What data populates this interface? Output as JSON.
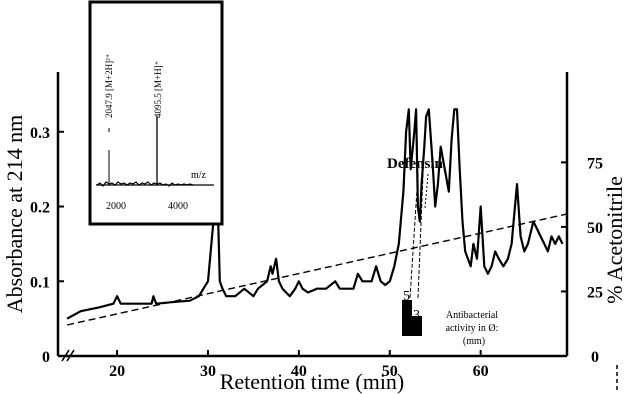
{
  "chart_data": {
    "type": "line",
    "title": "",
    "xlabel": "Retention time (min)",
    "ylabel": "Absorbance at 214 nm",
    "y2label": "% Acetonitrile",
    "xlim": [
      13.5,
      69.5
    ],
    "ylim": [
      0,
      0.38
    ],
    "y2lim": [
      0,
      110
    ],
    "xticks": [
      20,
      30,
      40,
      50,
      60
    ],
    "yticks": [
      0,
      0.1,
      0.2,
      0.3
    ],
    "ytick_labels": [
      "0",
      "0.1",
      "0.2",
      "0.3"
    ],
    "y2ticks": [
      25,
      50,
      75
    ],
    "y2tick_labels": [
      "25",
      "50",
      "75"
    ],
    "legend": "none",
    "grid": false,
    "series": [
      {
        "name": "",
        "style": "solid",
        "x": [
          14.5,
          16,
          18,
          19.6,
          20,
          20.4,
          22,
          23.8,
          24,
          24.3,
          26,
          28,
          29,
          29.5,
          30,
          30.3,
          30.6,
          30.9,
          31.1,
          31.3,
          31.6,
          32,
          33,
          34,
          35,
          35.5,
          36,
          36.5,
          36.9,
          37.1,
          37.3,
          37.5,
          37.8,
          38.2,
          38.6,
          39,
          39.6,
          40,
          40.4,
          41,
          42,
          43,
          44,
          44.5,
          45,
          46,
          46.5,
          47,
          48,
          48.5,
          49,
          49.5,
          50,
          50.5,
          51,
          51.5,
          51.8,
          52.1,
          52.3,
          52.7,
          52.9,
          53.1,
          53.3,
          53.5,
          53.8,
          54,
          54.3,
          54.7,
          55,
          55.3,
          55.6,
          55.9,
          56.2,
          56.5,
          56.8,
          57.1,
          57.4,
          57.7,
          58,
          58.3,
          58.6,
          58.9,
          59.2,
          59.6,
          60,
          60.4,
          60.8,
          61.2,
          61.6,
          62,
          62.5,
          63,
          63.4,
          63.7,
          64,
          64.4,
          64.8,
          65.2,
          65.8,
          66.2,
          66.6,
          67,
          67.4,
          67.8,
          68.2,
          68.6,
          69
        ],
        "y": [
          0.05,
          0.06,
          0.065,
          0.07,
          0.08,
          0.07,
          0.07,
          0.07,
          0.08,
          0.07,
          0.072,
          0.074,
          0.08,
          0.09,
          0.1,
          0.14,
          0.18,
          0.23,
          0.19,
          0.1,
          0.09,
          0.08,
          0.08,
          0.09,
          0.08,
          0.09,
          0.095,
          0.1,
          0.12,
          0.11,
          0.12,
          0.13,
          0.1,
          0.09,
          0.085,
          0.08,
          0.09,
          0.1,
          0.09,
          0.085,
          0.09,
          0.09,
          0.1,
          0.09,
          0.09,
          0.09,
          0.11,
          0.1,
          0.1,
          0.12,
          0.1,
          0.095,
          0.1,
          0.12,
          0.15,
          0.22,
          0.3,
          0.33,
          0.25,
          0.3,
          0.33,
          0.2,
          0.18,
          0.23,
          0.28,
          0.32,
          0.33,
          0.26,
          0.2,
          0.23,
          0.28,
          0.26,
          0.24,
          0.22,
          0.29,
          0.33,
          0.33,
          0.25,
          0.18,
          0.14,
          0.13,
          0.12,
          0.15,
          0.13,
          0.2,
          0.12,
          0.11,
          0.12,
          0.14,
          0.13,
          0.12,
          0.13,
          0.15,
          0.19,
          0.23,
          0.16,
          0.14,
          0.15,
          0.18,
          0.17,
          0.16,
          0.15,
          0.14,
          0.16,
          0.15,
          0.16,
          0.15
        ]
      },
      {
        "name": "",
        "style": "dashed",
        "axis": "y2",
        "x": [
          14.5,
          69.5
        ],
        "y": [
          12,
          55
        ]
      }
    ],
    "inset": {
      "xlabel": "m/z",
      "xticks": [
        2000,
        4000
      ],
      "xlim": [
        1600,
        4500
      ],
      "peaks": [
        {
          "x": 2047.9,
          "label": "2047.9 [M+2H]²⁺"
        },
        {
          "x": 4095.5,
          "label": "4095.5 [M+H]⁺"
        }
      ]
    },
    "annotations": {
      "peak_label": "Defensin",
      "activity_values": [
        "5",
        "3"
      ],
      "activity_caption_line1": "Antibacterial",
      "activity_caption_line2": "activity in Ø:",
      "activity_caption_line3": "(mm)"
    }
  }
}
